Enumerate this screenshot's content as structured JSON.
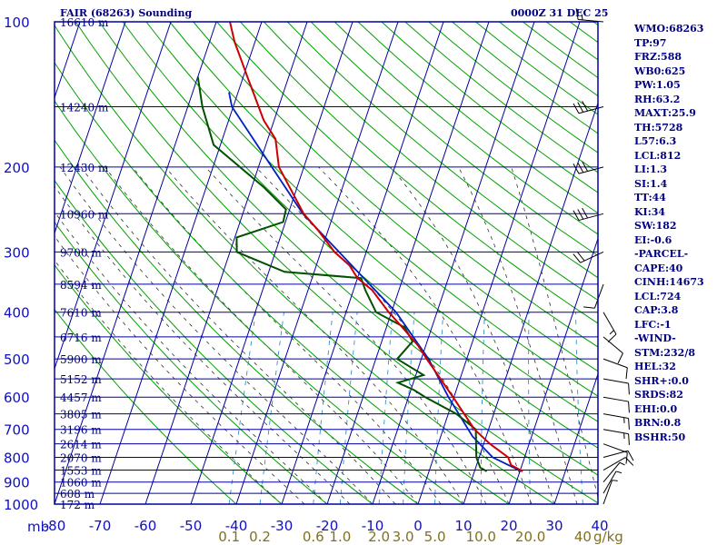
{
  "header": {
    "title": "FAIR (68263) Sounding",
    "date": "0000Z 31 DEC 25"
  },
  "indices": [
    "WMO:68263",
    "TP:97",
    "FRZ:588",
    "WB0:625",
    "PW:1.05",
    "RH:63.2",
    "MAXT:25.9",
    "TH:5728",
    "L57:6.3",
    "LCL:812",
    "LI:1.3",
    "SI:1.4",
    "TT:44",
    "KI:34",
    "SW:182",
    "EI:-0.6",
    "-PARCEL-",
    "CAPE:40",
    "CINH:14673",
    "LCL:724",
    "CAP:3.8",
    "LFC:-1",
    "-WIND-",
    "STM:232/8",
    "HEL:32",
    "SHR+:0.0",
    "SRDS:82",
    "EHI:0.0",
    "BRN:0.8",
    "BSHR:50"
  ],
  "colors": {
    "grid": "#0000a0",
    "dry_adiabat": "#00a000",
    "moist_adiabat": "#303030",
    "mixing_ratio": "#3090d0",
    "temperature": "#cc0000",
    "dewpoint": "#005000",
    "parcel": "#0020c0",
    "mixing_label": "#807020",
    "axis_label": "#1010c0",
    "height_label": "#000080"
  },
  "chart_data": {
    "type": "skew-t",
    "title": "FAIR (68263) Sounding",
    "pressure_ticks": [
      100,
      200,
      300,
      400,
      500,
      600,
      700,
      800,
      900,
      1000
    ],
    "pressure_axis_label": "mb",
    "temp_ticks": [
      -80,
      -70,
      -60,
      -50,
      -40,
      -30,
      -20,
      -10,
      0,
      10,
      20,
      30,
      40
    ],
    "mixing_ratio_label": "g/kg",
    "mixing_ratio_ticks": [
      "0.1",
      "0.2",
      "0.6",
      "1.0",
      "2.0",
      "3.0",
      "5.0",
      "10.0",
      "20.0",
      "40"
    ],
    "height_labels": [
      {
        "p": 100,
        "text": "16610 m"
      },
      {
        "p": 150,
        "text": "14240 m"
      },
      {
        "p": 200,
        "text": "12430 m"
      },
      {
        "p": 250,
        "text": "10960 m"
      },
      {
        "p": 300,
        "text": "9700 m"
      },
      {
        "p": 350,
        "text": "8594 m"
      },
      {
        "p": 400,
        "text": "7610 m"
      },
      {
        "p": 450,
        "text": "6716 m"
      },
      {
        "p": 500,
        "text": "5900 m"
      },
      {
        "p": 550,
        "text": "5152 m"
      },
      {
        "p": 600,
        "text": "4457 m"
      },
      {
        "p": 650,
        "text": "3805 m"
      },
      {
        "p": 700,
        "text": "3196 m"
      },
      {
        "p": 750,
        "text": "2614 m"
      },
      {
        "p": 800,
        "text": "2070 m"
      },
      {
        "p": 850,
        "text": "1553 m"
      },
      {
        "p": 900,
        "text": "1060 m"
      },
      {
        "p": 950,
        "text": "608 m"
      },
      {
        "p": 1000,
        "text": "172 m"
      }
    ],
    "temperature": [
      {
        "p": 855,
        "t": 20.6
      },
      {
        "p": 830,
        "t": 17.6
      },
      {
        "p": 800,
        "t": 16.4
      },
      {
        "p": 750,
        "t": 11.4
      },
      {
        "p": 700,
        "t": 6.9
      },
      {
        "p": 650,
        "t": 3.5
      },
      {
        "p": 600,
        "t": -0.2
      },
      {
        "p": 550,
        "t": -4.3
      },
      {
        "p": 500,
        "t": -8.8
      },
      {
        "p": 470,
        "t": -11.6
      },
      {
        "p": 430,
        "t": -16.5
      },
      {
        "p": 400,
        "t": -20.6
      },
      {
        "p": 360,
        "t": -25.9
      },
      {
        "p": 340,
        "t": -30.0
      },
      {
        "p": 320,
        "t": -32.7
      },
      {
        "p": 300,
        "t": -37.0
      },
      {
        "p": 270,
        "t": -42.3
      },
      {
        "p": 250,
        "t": -46.6
      },
      {
        "p": 200,
        "t": -55.5
      },
      {
        "p": 175,
        "t": -58.3
      },
      {
        "p": 160,
        "t": -62.3
      },
      {
        "p": 130,
        "t": -69.1
      },
      {
        "p": 110,
        "t": -74.5
      },
      {
        "p": 100,
        "t": -77.0
      }
    ],
    "dewpoint": [
      {
        "p": 855,
        "t": 12.7
      },
      {
        "p": 840,
        "t": 11.0
      },
      {
        "p": 800,
        "t": 9.4
      },
      {
        "p": 700,
        "t": 7.2
      },
      {
        "p": 650,
        "t": 1.8
      },
      {
        "p": 600,
        "t": -6.3
      },
      {
        "p": 580,
        "t": -9.3
      },
      {
        "p": 560,
        "t": -13.4
      },
      {
        "p": 540,
        "t": -8.3
      },
      {
        "p": 500,
        "t": -15.3
      },
      {
        "p": 460,
        "t": -13.2
      },
      {
        "p": 430,
        "t": -16.0
      },
      {
        "p": 400,
        "t": -23.4
      },
      {
        "p": 360,
        "t": -27.4
      },
      {
        "p": 340,
        "t": -29.2
      },
      {
        "p": 330,
        "t": -46.5
      },
      {
        "p": 300,
        "t": -58.5
      },
      {
        "p": 280,
        "t": -59.6
      },
      {
        "p": 260,
        "t": -50.5
      },
      {
        "p": 245,
        "t": -50.8
      },
      {
        "p": 220,
        "t": -57.4
      },
      {
        "p": 180,
        "t": -71.5
      },
      {
        "p": 150,
        "t": -76.8
      },
      {
        "p": 130,
        "t": -80.0
      }
    ],
    "parcel": [
      {
        "p": 855,
        "t": 20.3
      },
      {
        "p": 800,
        "t": 13.0
      },
      {
        "p": 724,
        "t": 7.0
      },
      {
        "p": 600,
        "t": -1.2
      },
      {
        "p": 500,
        "t": -8.4
      },
      {
        "p": 400,
        "t": -19.0
      },
      {
        "p": 300,
        "t": -36.0
      },
      {
        "p": 250,
        "t": -46.8
      },
      {
        "p": 150,
        "t": -70.3
      },
      {
        "p": 140,
        "t": -72.0
      }
    ],
    "wind_barbs": [
      {
        "p": 100,
        "dir": 275,
        "spd": 15
      },
      {
        "p": 150,
        "dir": 255,
        "spd": 30
      },
      {
        "p": 200,
        "dir": 255,
        "spd": 30
      },
      {
        "p": 250,
        "dir": 255,
        "spd": 30
      },
      {
        "p": 300,
        "dir": 245,
        "spd": 20
      },
      {
        "p": 350,
        "dir": 200,
        "spd": 10
      },
      {
        "p": 400,
        "dir": 150,
        "spd": 15
      },
      {
        "p": 450,
        "dir": 130,
        "spd": 10
      },
      {
        "p": 500,
        "dir": 110,
        "spd": 10
      },
      {
        "p": 550,
        "dir": 100,
        "spd": 10
      },
      {
        "p": 600,
        "dir": 100,
        "spd": 10
      },
      {
        "p": 650,
        "dir": 100,
        "spd": 15
      },
      {
        "p": 700,
        "dir": 100,
        "spd": 15
      },
      {
        "p": 750,
        "dir": 110,
        "spd": 10
      },
      {
        "p": 800,
        "dir": 75,
        "spd": 10
      },
      {
        "p": 850,
        "dir": 60,
        "spd": 10
      },
      {
        "p": 900,
        "dir": 40,
        "spd": 5
      },
      {
        "p": 950,
        "dir": 30,
        "spd": 5
      },
      {
        "p": 1000,
        "dir": 20,
        "spd": 5
      }
    ]
  }
}
